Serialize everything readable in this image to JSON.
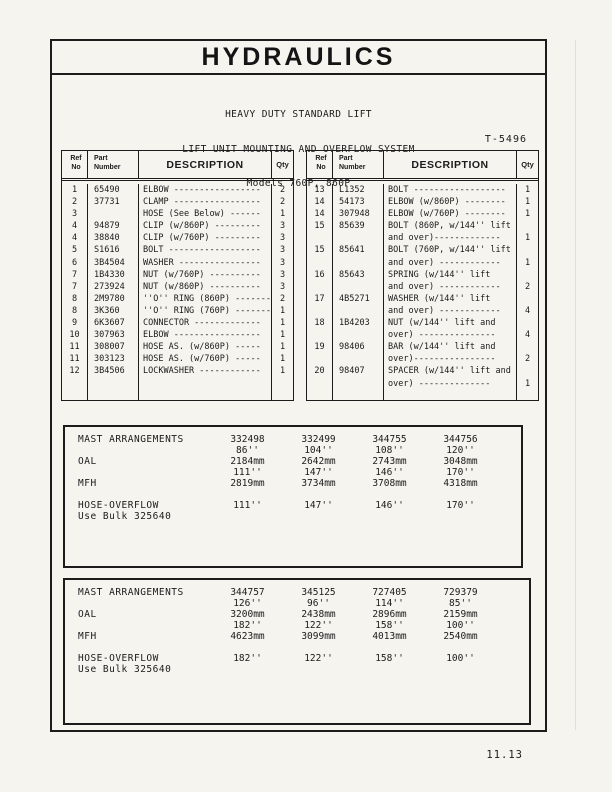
{
  "page": {
    "title": "HYDRAULICS",
    "subtitle_lines": [
      "HEAVY DUTY STANDARD LIFT",
      "LIFT UNIT MOUNTING AND OVERFLOW SYSTEM",
      "Models 760P, 860P"
    ],
    "doc_ref": "T-5496",
    "page_number": "11.13"
  },
  "parts": {
    "headers": {
      "ref": "Ref\nNo",
      "part": "Part\nNumber",
      "description": "DESCRIPTION",
      "qty": "Qty"
    },
    "left_rows": [
      {
        "ref": "1",
        "part": "65490",
        "desc": "ELBOW -----------------",
        "qty": "2"
      },
      {
        "ref": "2",
        "part": "37731",
        "desc": "CLAMP -----------------",
        "qty": "2"
      },
      {
        "ref": "3",
        "part": "",
        "desc": "HOSE (See Below) ------",
        "qty": "1"
      },
      {
        "ref": "4",
        "part": "94879",
        "desc": "CLIP (w/860P) ---------",
        "qty": "3"
      },
      {
        "ref": "4",
        "part": "38840",
        "desc": "CLIP (w/760P) ---------",
        "qty": "3"
      },
      {
        "ref": "5",
        "part": "S1616",
        "desc": "BOLT ------------------",
        "qty": "3"
      },
      {
        "ref": "6",
        "part": "3B4504",
        "desc": "WASHER ----------------",
        "qty": "3"
      },
      {
        "ref": "7",
        "part": "1B4330",
        "desc": "NUT (w/760P) ----------",
        "qty": "3"
      },
      {
        "ref": "7",
        "part": "273924",
        "desc": "NUT (w/860P) ----------",
        "qty": "3"
      },
      {
        "ref": "8",
        "part": "2M9780",
        "desc": "''O'' RING (860P) -------",
        "qty": "2"
      },
      {
        "ref": "8",
        "part": "3K360",
        "desc": "''O'' RING (760P) -------",
        "qty": "1"
      },
      {
        "ref": "9",
        "part": "6K3607",
        "desc": "CONNECTOR -------------",
        "qty": "1"
      },
      {
        "ref": "10",
        "part": "307963",
        "desc": "ELBOW -----------------",
        "qty": "1"
      },
      {
        "ref": "11",
        "part": "308007",
        "desc": "HOSE AS. (w/860P) -----",
        "qty": "1"
      },
      {
        "ref": "11",
        "part": "303123",
        "desc": "HOSE AS. (w/760P) -----",
        "qty": "1"
      },
      {
        "ref": "12",
        "part": "3B4506",
        "desc": "LOCKWASHER ------------",
        "qty": "1"
      }
    ],
    "right_rows": [
      {
        "ref": "13",
        "part": "L1352",
        "desc": "BOLT ------------------",
        "qty": "1"
      },
      {
        "ref": "14",
        "part": "54173",
        "desc": "ELBOW (w/860P) --------",
        "qty": "1"
      },
      {
        "ref": "14",
        "part": "307948",
        "desc": "ELBOW (w/760P) --------",
        "qty": "1"
      },
      {
        "ref": "15",
        "part": "85639",
        "desc": "BOLT (860P, w/144'' lift\nand over)-------------",
        "qty": "1"
      },
      {
        "ref": "15",
        "part": "85641",
        "desc": "BOLT (760P, w/144'' lift\nand over) ------------",
        "qty": "1"
      },
      {
        "ref": "16",
        "part": "85643",
        "desc": "SPRING (w/144'' lift\nand over) ------------",
        "qty": "2"
      },
      {
        "ref": "17",
        "part": "4B5271",
        "desc": "WASHER (w/144'' lift\nand over) ------------",
        "qty": "4"
      },
      {
        "ref": "18",
        "part": "1B4203",
        "desc": "NUT (w/144'' lift and\nover) ---------------",
        "qty": "4"
      },
      {
        "ref": "19",
        "part": "98406",
        "desc": "BAR (w/144'' lift and\nover)----------------",
        "qty": "2"
      },
      {
        "ref": "20",
        "part": "98407",
        "desc": "SPACER (w/144'' lift and\nover) --------------",
        "qty": "1"
      }
    ]
  },
  "mast_labels": {
    "arrangements": "MAST ARRANGEMENTS",
    "oal": "OAL",
    "mfh": "MFH",
    "hose": "HOSE-OVERFLOW",
    "bulk": "Use Bulk 325640"
  },
  "mast_tables": [
    {
      "columns": [
        {
          "part": "332498",
          "oal_in": "86''",
          "oal_mm": "2184mm",
          "mfh_in": "111''",
          "mfh_mm": "2819mm",
          "hose": "111''"
        },
        {
          "part": "332499",
          "oal_in": "104''",
          "oal_mm": "2642mm",
          "mfh_in": "147''",
          "mfh_mm": "3734mm",
          "hose": "147''"
        },
        {
          "part": "344755",
          "oal_in": "108''",
          "oal_mm": "2743mm",
          "mfh_in": "146''",
          "mfh_mm": "3708mm",
          "hose": "146''"
        },
        {
          "part": "344756",
          "oal_in": "120''",
          "oal_mm": "3048mm",
          "mfh_in": "170''",
          "mfh_mm": "4318mm",
          "hose": "170''"
        }
      ]
    },
    {
      "columns": [
        {
          "part": "344757",
          "oal_in": "126''",
          "oal_mm": "3200mm",
          "mfh_in": "182''",
          "mfh_mm": "4623mm",
          "hose": "182''"
        },
        {
          "part": "345125",
          "oal_in": "96''",
          "oal_mm": "2438mm",
          "mfh_in": "122''",
          "mfh_mm": "3099mm",
          "hose": "122''"
        },
        {
          "part": "727405",
          "oal_in": "114''",
          "oal_mm": "2896mm",
          "mfh_in": "158''",
          "mfh_mm": "4013mm",
          "hose": "158''"
        },
        {
          "part": "729379",
          "oal_in": "85''",
          "oal_mm": "2159mm",
          "mfh_in": "100''",
          "mfh_mm": "2540mm",
          "hose": "100''"
        }
      ]
    }
  ]
}
